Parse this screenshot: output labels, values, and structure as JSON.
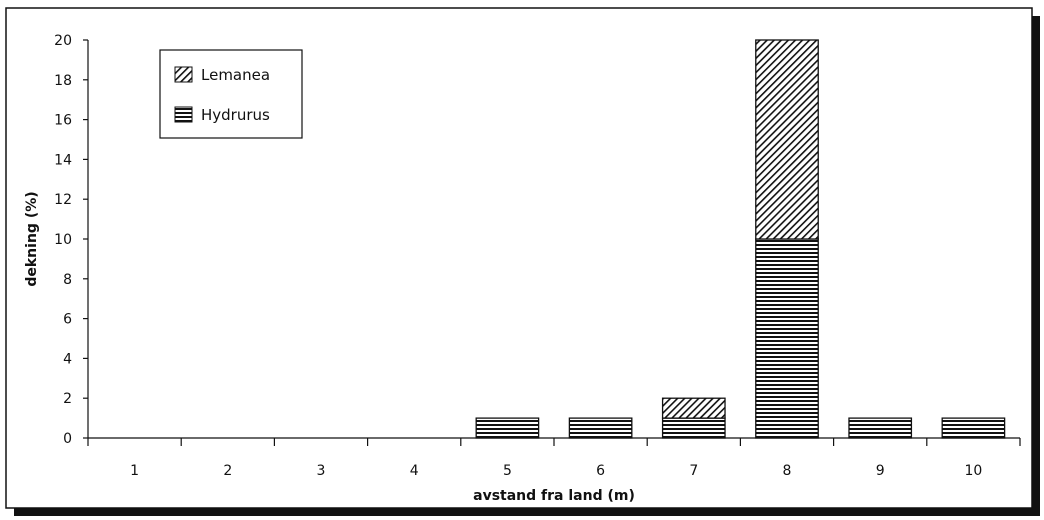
{
  "chart_data": {
    "type": "bar",
    "stacked": true,
    "categories": [
      "1",
      "2",
      "3",
      "4",
      "5",
      "6",
      "7",
      "8",
      "9",
      "10"
    ],
    "series": [
      {
        "name": "Hydrurus",
        "values": [
          0,
          0,
          0,
          0,
          1,
          1,
          1,
          10,
          1,
          1
        ],
        "pattern": "horizontal-stripes"
      },
      {
        "name": "Lemanea",
        "values": [
          0,
          0,
          0,
          0,
          0,
          0,
          1,
          10,
          0,
          0
        ],
        "pattern": "diagonal-hatch"
      }
    ],
    "title": "",
    "xlabel": "avstand fra land (m)",
    "ylabel": "dekning (%)",
    "ylim": [
      0,
      20
    ],
    "yticks": [
      "0",
      "2",
      "4",
      "6",
      "8",
      "10",
      "12",
      "14",
      "16",
      "18",
      "20"
    ],
    "grid": false,
    "legend": {
      "placement": "top-left",
      "entries": [
        "Lemanea",
        "Hydrurus"
      ]
    },
    "colors": {
      "ink": "#111111",
      "background": "#ffffff",
      "shadow": "#111111"
    }
  }
}
